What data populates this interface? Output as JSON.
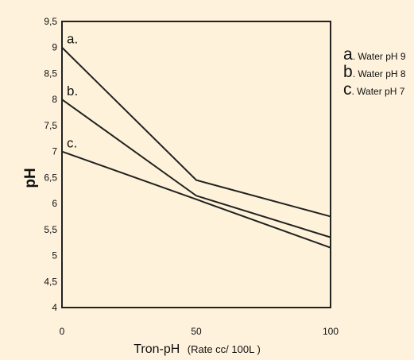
{
  "chart_data": {
    "type": "line",
    "title": "",
    "xlabel": "Tron-pH",
    "xlabel_unit": "(Rate  cc/ 100L )",
    "ylabel": "pH",
    "x": [
      0,
      50,
      100
    ],
    "x_ticks": [
      "0",
      "50",
      "100"
    ],
    "y_ticks": [
      "4",
      "4,5",
      "5",
      "5,5",
      "6",
      "6,5",
      "7",
      "7,5",
      "8",
      "8,5",
      "9",
      "9,5"
    ],
    "ylim": [
      4,
      9.5
    ],
    "xlim": [
      0,
      100
    ],
    "grid": false,
    "legend_position": "right",
    "plot_background": "#fef3da",
    "page_background": "#fef2dd",
    "line_color": "#222222",
    "series": [
      {
        "name": "Water pH 9",
        "key": "a",
        "label": "a.",
        "values": [
          9,
          6.45,
          5.75
        ]
      },
      {
        "name": "Water pH 8",
        "key": "b",
        "label": "b.",
        "values": [
          8,
          6.15,
          5.35
        ]
      },
      {
        "name": "Water pH 7",
        "key": "c",
        "label": "c.",
        "values": [
          7,
          6.08,
          5.15
        ]
      }
    ],
    "legend": [
      {
        "key": "a",
        "text": ". Water pH 9"
      },
      {
        "key": "b",
        "text": ". Water pH 8"
      },
      {
        "key": "c",
        "text": ". Water pH 7"
      }
    ]
  }
}
